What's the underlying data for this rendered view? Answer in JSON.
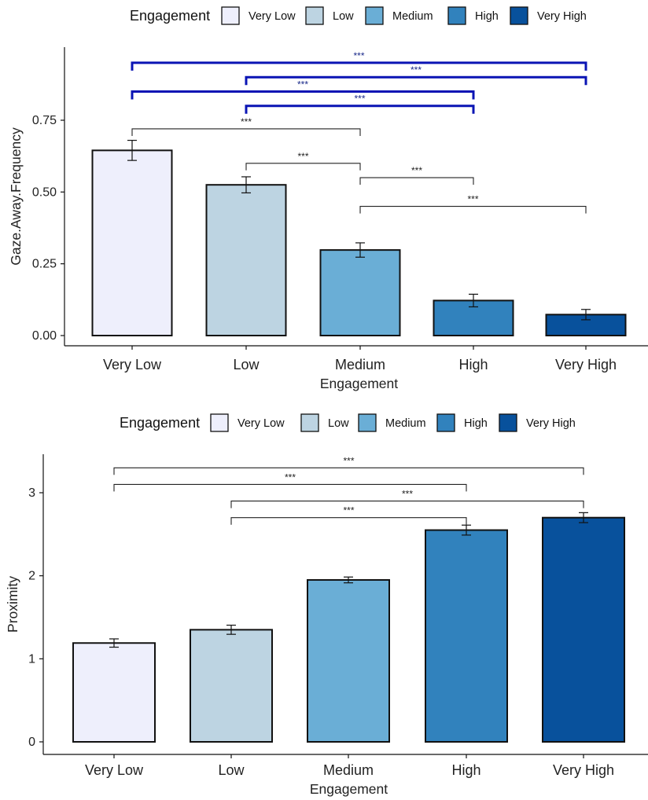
{
  "colors": {
    "Very Low": "#eeeffc",
    "Low": "#bdd4e2",
    "Medium": "#6aaed6",
    "High": "#3182bd",
    "Very High": "#08519c",
    "bracket_blue": "#0a14b4",
    "bracket_black": "#222222"
  },
  "chart_data": [
    {
      "type": "bar",
      "legend": {
        "title": "Engagement",
        "entries": [
          "Very Low",
          "Low",
          "Medium",
          "High",
          "Very High"
        ],
        "position": "top"
      },
      "categories": [
        "Very Low",
        "Low",
        "Medium",
        "High",
        "Very High"
      ],
      "values": [
        0.645,
        0.525,
        0.298,
        0.122,
        0.073
      ],
      "errors": [
        0.035,
        0.028,
        0.025,
        0.022,
        0.018
      ],
      "xlabel": "Engagement",
      "ylabel": "Gaze.Away.Frequency",
      "ylim": [
        0,
        0.75
      ],
      "yticks": [
        0.0,
        0.25,
        0.5,
        0.75
      ],
      "ytick_labels": [
        "0.00",
        "0.25",
        "0.50",
        "0.75"
      ],
      "grid": false,
      "significance": [
        {
          "from": "Very Low",
          "to": "Very High",
          "y": 0.95,
          "label": "***",
          "color": "blue"
        },
        {
          "from": "Low",
          "to": "Very High",
          "y": 0.9,
          "label": "***",
          "color": "blue"
        },
        {
          "from": "Very Low",
          "to": "High",
          "y": 0.85,
          "label": "***",
          "color": "blue"
        },
        {
          "from": "Low",
          "to": "High",
          "y": 0.8,
          "label": "***",
          "color": "blue"
        },
        {
          "from": "Very Low",
          "to": "Medium",
          "y": 0.72,
          "label": "***",
          "color": "black"
        },
        {
          "from": "Low",
          "to": "Medium",
          "y": 0.6,
          "label": "***",
          "color": "black"
        },
        {
          "from": "Medium",
          "to": "High",
          "y": 0.55,
          "label": "***",
          "color": "black"
        },
        {
          "from": "Medium",
          "to": "Very High",
          "y": 0.45,
          "label": "***",
          "color": "black"
        }
      ]
    },
    {
      "type": "bar",
      "legend": {
        "title": "Engagement",
        "entries": [
          "Very Low",
          "Low",
          "Medium",
          "High",
          "Very High"
        ],
        "position": "top"
      },
      "categories": [
        "Very Low",
        "Low",
        "Medium",
        "High",
        "Very High"
      ],
      "values": [
        1.19,
        1.35,
        1.95,
        2.55,
        2.7
      ],
      "errors": [
        0.05,
        0.055,
        0.035,
        0.06,
        0.06
      ],
      "xlabel": "Engagement",
      "ylabel": "Proximity",
      "ylim": [
        0,
        3
      ],
      "yticks": [
        0,
        1,
        2,
        3
      ],
      "ytick_labels": [
        "0",
        "1",
        "2",
        "3"
      ],
      "grid": false,
      "significance": [
        {
          "from": "Very Low",
          "to": "Very High",
          "y": 3.3,
          "label": "***",
          "color": "black"
        },
        {
          "from": "Very Low",
          "to": "High",
          "y": 3.1,
          "label": "***",
          "color": "black"
        },
        {
          "from": "Low",
          "to": "Very High",
          "y": 2.9,
          "label": "***",
          "color": "black"
        },
        {
          "from": "Low",
          "to": "High",
          "y": 2.7,
          "label": "***",
          "color": "black"
        }
      ]
    }
  ]
}
